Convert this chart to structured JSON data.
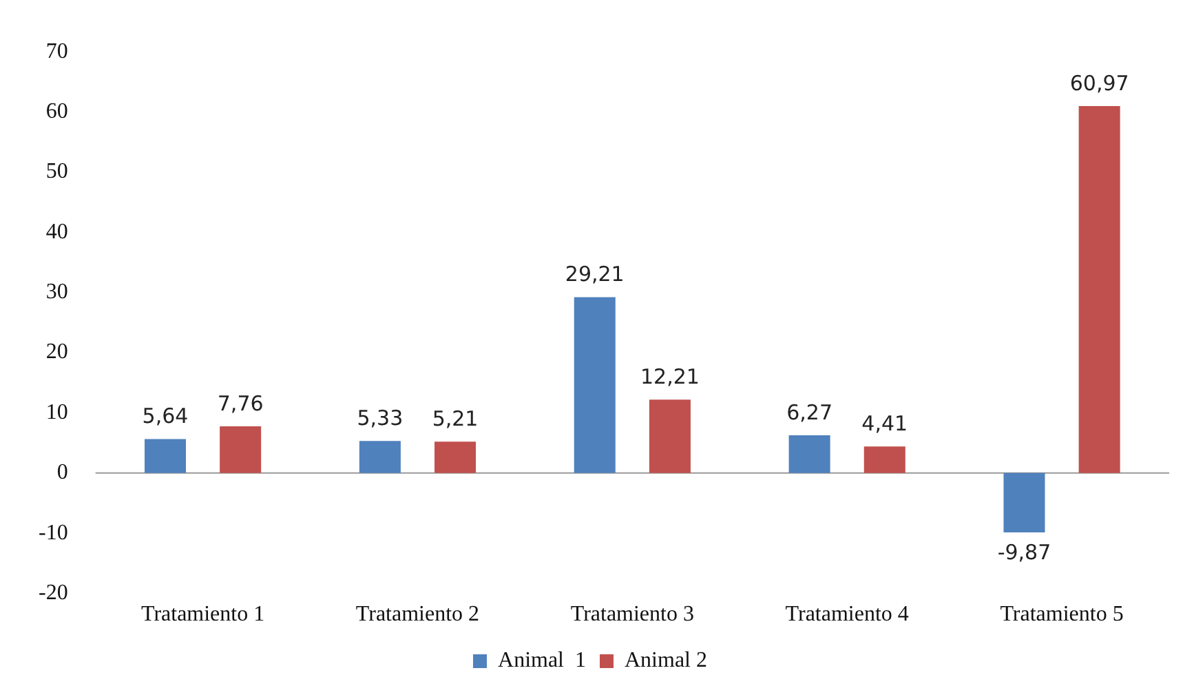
{
  "chart_data": {
    "type": "bar",
    "categories": [
      "Tratamiento 1",
      "Tratamiento 2",
      "Tratamiento 3",
      "Tratamiento 4",
      "Tratamiento 5"
    ],
    "series": [
      {
        "name": "Animal  1",
        "color": "#4f81bd",
        "values": [
          5.64,
          5.33,
          29.21,
          6.27,
          -9.87
        ],
        "value_labels": [
          "5,64",
          "5,33",
          "29,21",
          "6,27",
          "-9,87"
        ]
      },
      {
        "name": "Animal 2",
        "color": "#c0504d",
        "values": [
          7.76,
          5.21,
          12.21,
          4.41,
          60.97
        ],
        "value_labels": [
          "7,76",
          "5,21",
          "12,21",
          "4,41",
          "60,97"
        ]
      }
    ],
    "ylim": [
      -20,
      70
    ],
    "yticks": [
      -20,
      -10,
      0,
      10,
      20,
      30,
      40,
      50,
      60,
      70
    ],
    "grid": false,
    "ref_lines": [
      {
        "axis": "y",
        "value": 0,
        "color": "#999999"
      }
    ],
    "legend": "bottom"
  }
}
